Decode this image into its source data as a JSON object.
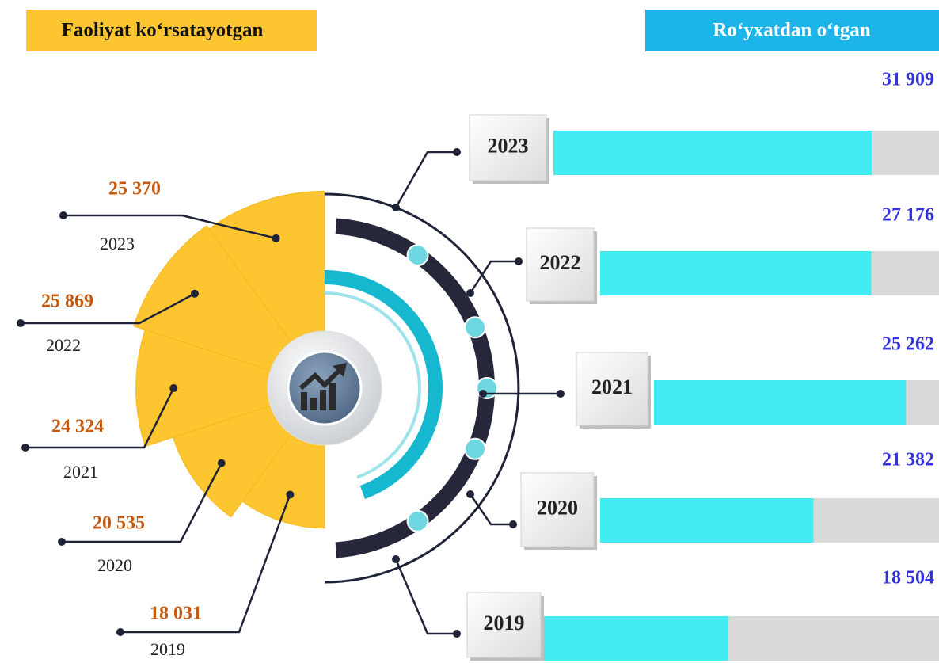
{
  "chart_data": [
    {
      "type": "polar",
      "title": "Faoliyat ko‘rsatayotgan",
      "categories": [
        "2023",
        "2022",
        "2021",
        "2020",
        "2019"
      ],
      "values": [
        25370,
        25869,
        24324,
        20535,
        18031
      ],
      "value_labels": [
        "25 370",
        "25 869",
        "24 324",
        "20 535",
        "18 031"
      ],
      "color": "#fdc631"
    },
    {
      "type": "bar",
      "title": "Ro‘yxatdan o‘tgan",
      "categories": [
        "2023",
        "2022",
        "2021",
        "2020",
        "2019"
      ],
      "values": [
        31909,
        27176,
        25262,
        21382,
        18504
      ],
      "value_labels": [
        "31 909",
        "27 176",
        "25 262",
        "21 382",
        "18 504"
      ],
      "color": "#43ecf3"
    }
  ]
}
